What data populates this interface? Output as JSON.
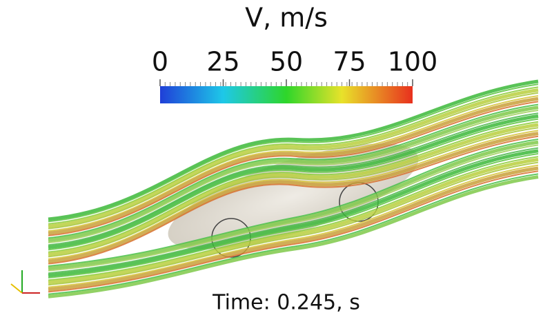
{
  "colorbar": {
    "title": "V, m/s",
    "range": [
      0,
      100
    ],
    "ticks": [
      0,
      25,
      50,
      75,
      100
    ]
  },
  "caption": "Time: 0.245, s"
}
